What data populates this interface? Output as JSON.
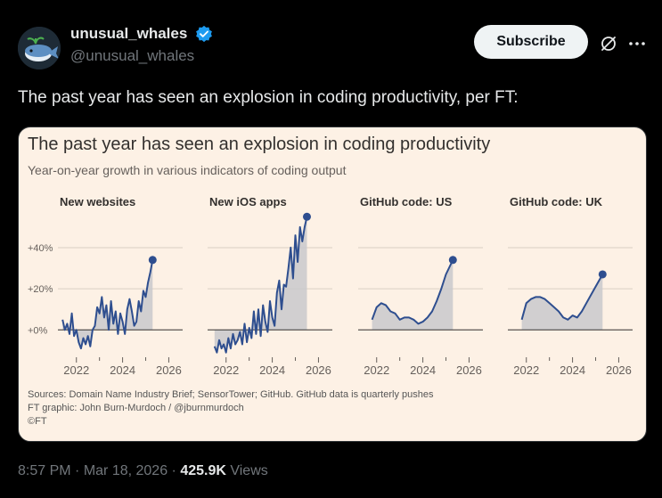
{
  "author": {
    "display_name": "unusual_whales",
    "handle": "@unusual_whales",
    "verified": true
  },
  "actions": {
    "subscribe_label": "Subscribe",
    "grok_icon": "grok-icon",
    "more_icon": "more-icon"
  },
  "tweet": {
    "text": "The past year has seen an explosion in coding productivity, per FT:"
  },
  "card": {
    "title": "The past year has seen an explosion in coding productivity",
    "subtitle": "Year-on-year growth in various indicators of coding output",
    "sources": [
      "Sources: Domain Name Industry Brief; SensorTower; GitHub. GitHub data is quarterly pushes",
      "FT graphic: John Burn-Murdoch / @jburnmurdoch",
      "©FT"
    ]
  },
  "chart_data": {
    "type": "area",
    "title": "The past year has seen an explosion in coding productivity",
    "subtitle": "Year-on-year growth in various indicators of coding output",
    "y_tick_labels": [
      "+40%",
      "+20%",
      "+0%"
    ],
    "y_ticks": [
      40,
      20,
      0
    ],
    "ylim": [
      -12,
      56
    ],
    "x_tick_labels": [
      "2022",
      "2024",
      "2026"
    ],
    "x_ticks": [
      2022,
      2024,
      2026
    ],
    "xlim": [
      2021.2,
      2026.6
    ],
    "colors": {
      "line": "#2e4e8f",
      "fill": "#c9c9cc",
      "grid": "#d9d0c4",
      "axis": "#33302e"
    },
    "panels": [
      {
        "name": "New websites",
        "x": [
          2021.4,
          2021.5,
          2021.6,
          2021.7,
          2021.8,
          2021.9,
          2022.0,
          2022.1,
          2022.2,
          2022.3,
          2022.4,
          2022.5,
          2022.6,
          2022.7,
          2022.8,
          2022.9,
          2023.0,
          2023.1,
          2023.2,
          2023.3,
          2023.4,
          2023.5,
          2023.6,
          2023.7,
          2023.8,
          2023.9,
          2024.0,
          2024.1,
          2024.2,
          2024.3,
          2024.4,
          2024.5,
          2024.6,
          2024.7,
          2024.8,
          2024.9,
          2025.0,
          2025.1,
          2025.2,
          2025.3
        ],
        "values": [
          5,
          0,
          3,
          -2,
          8,
          -3,
          0,
          -6,
          -9,
          -4,
          -7,
          -3,
          -8,
          0,
          2,
          11,
          8,
          16,
          6,
          12,
          0,
          14,
          3,
          9,
          -2,
          8,
          4,
          -2,
          10,
          15,
          9,
          2,
          4,
          14,
          9,
          19,
          16,
          23,
          28,
          34
        ]
      },
      {
        "name": "New iOS apps",
        "x": [
          2021.5,
          2021.6,
          2021.7,
          2021.8,
          2021.9,
          2022.0,
          2022.1,
          2022.2,
          2022.3,
          2022.4,
          2022.5,
          2022.6,
          2022.7,
          2022.8,
          2022.9,
          2023.0,
          2023.1,
          2023.2,
          2023.3,
          2023.4,
          2023.5,
          2023.6,
          2023.7,
          2023.8,
          2023.9,
          2024.0,
          2024.1,
          2024.2,
          2024.3,
          2024.4,
          2024.5,
          2024.6,
          2024.7,
          2024.8,
          2024.9,
          2025.0,
          2025.1,
          2025.2,
          2025.3,
          2025.4,
          2025.5
        ],
        "values": [
          -8,
          -11,
          -5,
          -9,
          -7,
          -11,
          -4,
          -9,
          -2,
          -7,
          -5,
          -1,
          -7,
          3,
          -6,
          1,
          -4,
          9,
          -2,
          10,
          -3,
          12,
          4,
          -1,
          14,
          6,
          2,
          18,
          24,
          10,
          22,
          21,
          30,
          40,
          25,
          46,
          33,
          50,
          43,
          50,
          55
        ]
      },
      {
        "name": "GitHub code: US",
        "x": [
          2021.8,
          2022.0,
          2022.2,
          2022.4,
          2022.6,
          2022.8,
          2023.0,
          2023.2,
          2023.4,
          2023.6,
          2023.8,
          2024.0,
          2024.2,
          2024.4,
          2024.6,
          2024.8,
          2025.0,
          2025.3
        ],
        "values": [
          5,
          11,
          13,
          12,
          9,
          8,
          5,
          6,
          6,
          5,
          3,
          4,
          6,
          9,
          14,
          20,
          27,
          34
        ]
      },
      {
        "name": "GitHub code: UK",
        "x": [
          2021.8,
          2022.0,
          2022.2,
          2022.4,
          2022.6,
          2022.8,
          2023.0,
          2023.2,
          2023.4,
          2023.6,
          2023.8,
          2024.0,
          2024.2,
          2024.4,
          2024.6,
          2024.8,
          2025.0,
          2025.3
        ],
        "values": [
          5,
          13,
          15,
          16,
          16,
          15,
          13,
          11,
          9,
          6,
          5,
          7,
          6,
          9,
          13,
          17,
          21,
          27
        ]
      }
    ]
  },
  "meta": {
    "time": "8:57 PM",
    "separator": " · ",
    "date": "Mar 18, 2026",
    "views_count": "425.9K",
    "views_label": " Views"
  }
}
